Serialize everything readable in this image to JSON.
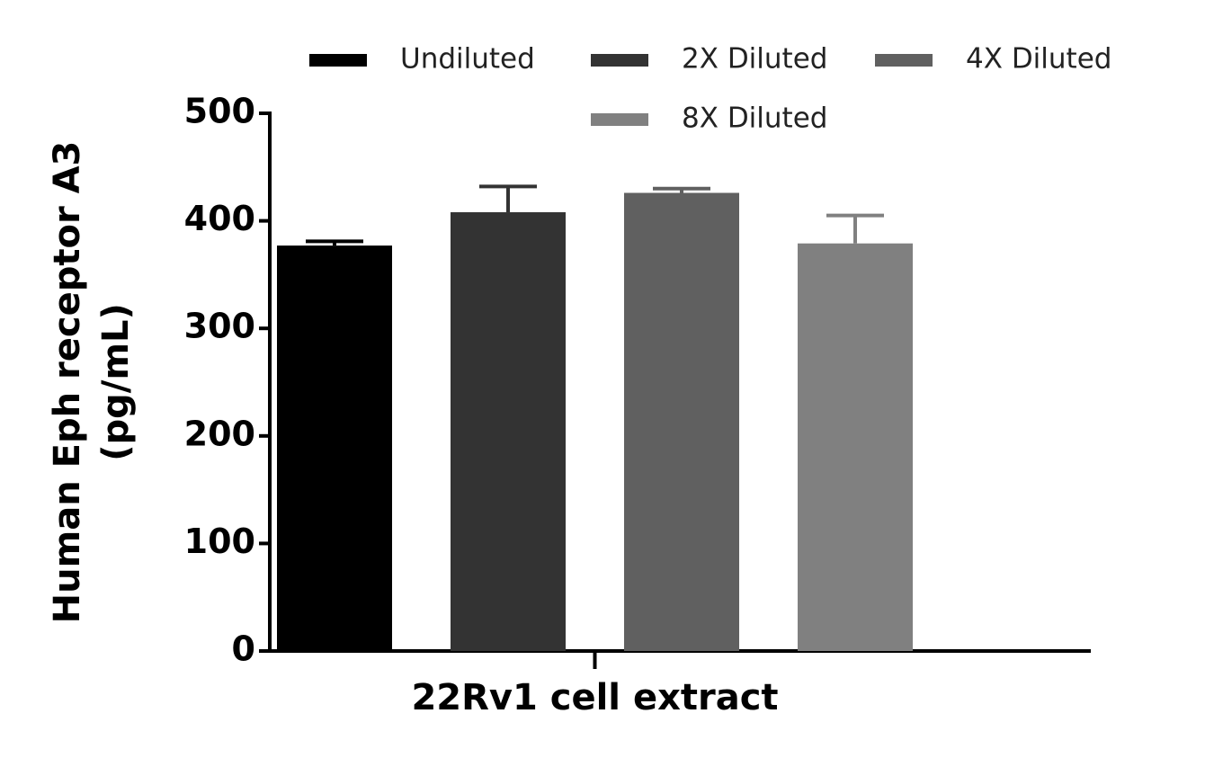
{
  "chart_data": {
    "type": "bar",
    "y_label": [
      "Human Eph receptor A3",
      "(pg/mL)"
    ],
    "categories": [
      "22Rv1 cell extract"
    ],
    "series": [
      {
        "name": "Undiluted",
        "color": "#000000",
        "values": [
          377
        ],
        "errors": [
          4
        ]
      },
      {
        "name": "2X Diluted",
        "color": "#333333",
        "values": [
          408
        ],
        "errors": [
          24
        ]
      },
      {
        "name": "4X Diluted",
        "color": "#606060",
        "values": [
          426
        ],
        "errors": [
          4
        ]
      },
      {
        "name": "8X Diluted",
        "color": "#808080",
        "values": [
          379
        ],
        "errors": [
          26
        ]
      }
    ],
    "ylim": [
      0,
      500
    ],
    "yticks": [
      0,
      100,
      200,
      300,
      400,
      500
    ],
    "grid": false
  }
}
